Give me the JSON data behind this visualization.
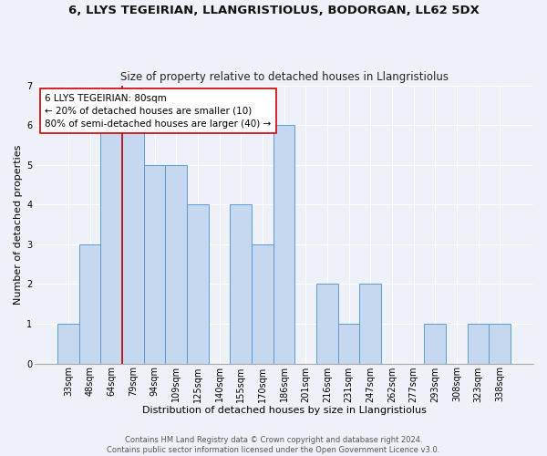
{
  "title": "6, LLYS TEGEIRIAN, LLANGRISTIOLUS, BODORGAN, LL62 5DX",
  "subtitle": "Size of property relative to detached houses in Llangristiolus",
  "xlabel": "Distribution of detached houses by size in Llangristiolus",
  "ylabel": "Number of detached properties",
  "categories": [
    "33sqm",
    "48sqm",
    "64sqm",
    "79sqm",
    "94sqm",
    "109sqm",
    "125sqm",
    "140sqm",
    "155sqm",
    "170sqm",
    "186sqm",
    "201sqm",
    "216sqm",
    "231sqm",
    "247sqm",
    "262sqm",
    "277sqm",
    "293sqm",
    "308sqm",
    "323sqm",
    "338sqm"
  ],
  "values": [
    1,
    3,
    6,
    6,
    5,
    5,
    4,
    0,
    4,
    3,
    6,
    0,
    2,
    1,
    2,
    0,
    0,
    1,
    0,
    1,
    1
  ],
  "bar_color": "#c5d8f0",
  "bar_edge_color": "#5b9bd5",
  "ylim": [
    0,
    7
  ],
  "yticks": [
    0,
    1,
    2,
    3,
    4,
    5,
    6,
    7
  ],
  "red_line_index": 3,
  "annotation_title": "6 LLYS TEGEIRIAN: 80sqm",
  "annotation_line1": "← 20% of detached houses are smaller (10)",
  "annotation_line2": "80% of semi-detached houses are larger (40) →",
  "annotation_box_color": "#ffffff",
  "annotation_box_edge_color": "#cc0000",
  "footer_line1": "Contains HM Land Registry data © Crown copyright and database right 2024.",
  "footer_line2": "Contains public sector information licensed under the Open Government Licence v3.0.",
  "background_color": "#eef2f8",
  "grid_color": "#ffffff",
  "title_fontsize": 9.5,
  "subtitle_fontsize": 8.5,
  "xlabel_fontsize": 8,
  "ylabel_fontsize": 8,
  "tick_fontsize": 7,
  "annotation_fontsize": 7.5,
  "footer_fontsize": 6
}
